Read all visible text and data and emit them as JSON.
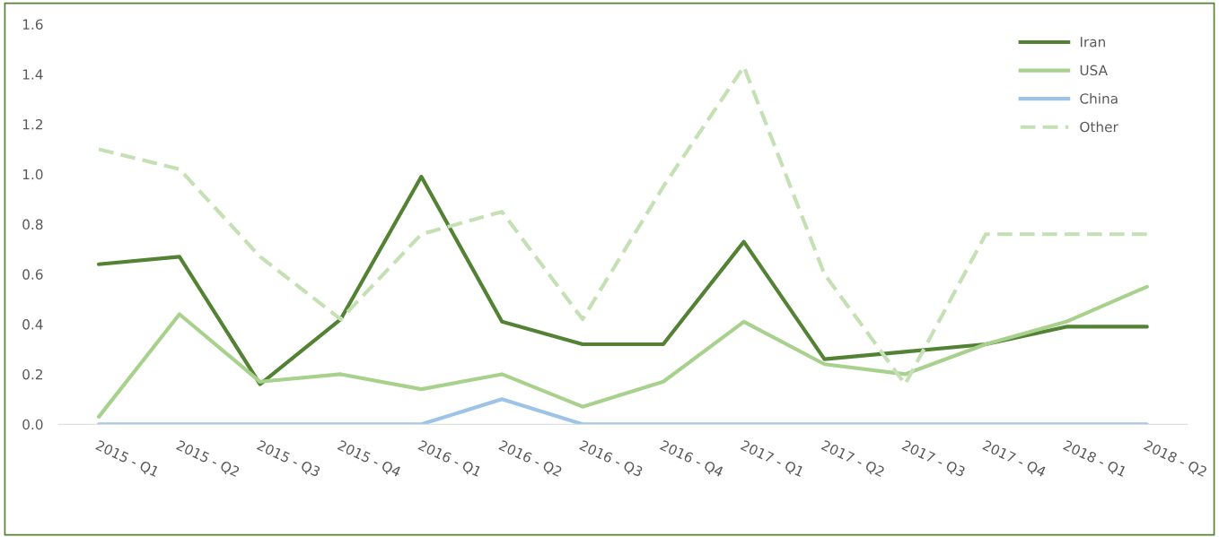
{
  "chart_data": {
    "type": "line",
    "categories": [
      "2015 - Q1",
      "2015 - Q2",
      "2015 - Q3",
      "2015 - Q4",
      "2016 - Q1",
      "2016 - Q2",
      "2016 - Q3",
      "2016 - Q4",
      "2017 - Q1",
      "2017 - Q2",
      "2017 - Q3",
      "2017 - Q4",
      "2018 - Q1",
      "2018 - Q2"
    ],
    "series": [
      {
        "name": "Iran",
        "color": "#548235",
        "values": [
          0.64,
          0.67,
          0.16,
          0.42,
          0.99,
          0.41,
          0.32,
          0.32,
          0.73,
          0.26,
          0.29,
          0.32,
          0.39,
          0.39
        ]
      },
      {
        "name": "USA",
        "color": "#a9d18e",
        "values": [
          0.03,
          0.44,
          0.17,
          0.2,
          0.14,
          0.2,
          0.07,
          0.17,
          0.41,
          0.24,
          0.2,
          0.32,
          0.41,
          0.55
        ]
      },
      {
        "name": "China",
        "color": "#9dc3e6",
        "values": [
          0,
          0,
          0,
          0,
          0,
          0.1,
          0,
          0,
          0,
          0,
          0,
          0,
          0,
          0
        ]
      },
      {
        "name": "Other",
        "color": "#c5e0b4",
        "line_style": "dashed",
        "values": [
          1.1,
          1.02,
          0.67,
          0.42,
          0.76,
          0.85,
          0.42,
          0.95,
          1.43,
          0.6,
          0.16,
          0.76,
          0.76,
          0.76
        ]
      }
    ],
    "ylim": [
      0,
      1.6
    ],
    "yticks": [
      {
        "value": 0,
        "label": "0.0"
      },
      0.2,
      0.4,
      0.6,
      0.8,
      {
        "value": 1,
        "label": "1.0"
      },
      1.2,
      1.4,
      1.6
    ],
    "grid": false,
    "legend": "top right",
    "marker": "none",
    "line_style": "solid"
  }
}
